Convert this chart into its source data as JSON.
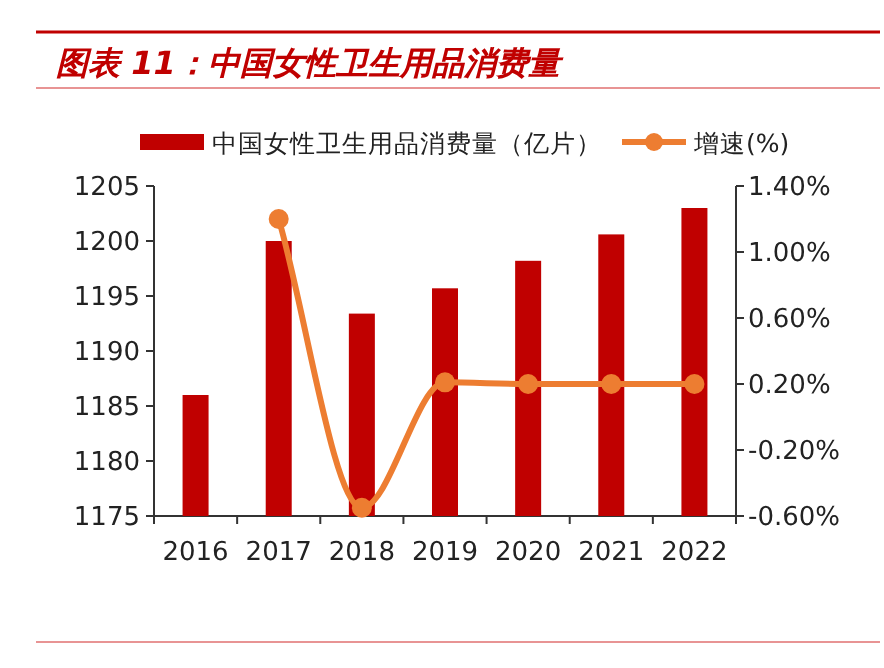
{
  "chart_data": {
    "type": "bar",
    "title": "图表 11：中国女性卫生用品消费量",
    "categories": [
      "2016",
      "2017",
      "2018",
      "2019",
      "2020",
      "2021",
      "2022"
    ],
    "series": [
      {
        "name": "中国女性卫生用品消费量（亿片）",
        "color": "#c00000",
        "values": [
          1186,
          1200,
          1193.4,
          1195.7,
          1198.2,
          1200.6,
          1203
        ]
      },
      {
        "name": "增速(%)",
        "type": "line",
        "axis": "y2",
        "color": "#ed7d31",
        "marker": "circle",
        "values": [
          null,
          1.2,
          -0.55,
          0.21,
          0.2,
          0.2,
          0.2
        ]
      }
    ],
    "ylim": [
      1175,
      1205
    ],
    "yticks": [
      1175,
      1180,
      1185,
      1190,
      1195,
      1200,
      1205
    ],
    "y2lim": [
      -0.6,
      1.4
    ],
    "y2ticks": [
      {
        "value": -0.6,
        "label": "-0.60%"
      },
      {
        "value": -0.2,
        "label": "-0.20%"
      },
      {
        "value": 0.2,
        "label": "0.20%"
      },
      {
        "value": 0.6,
        "label": "0.60%"
      },
      {
        "value": 1.0,
        "label": "1.00%"
      },
      {
        "value": 1.4,
        "label": "1.40%"
      }
    ],
    "grid": false,
    "legend": "top"
  }
}
